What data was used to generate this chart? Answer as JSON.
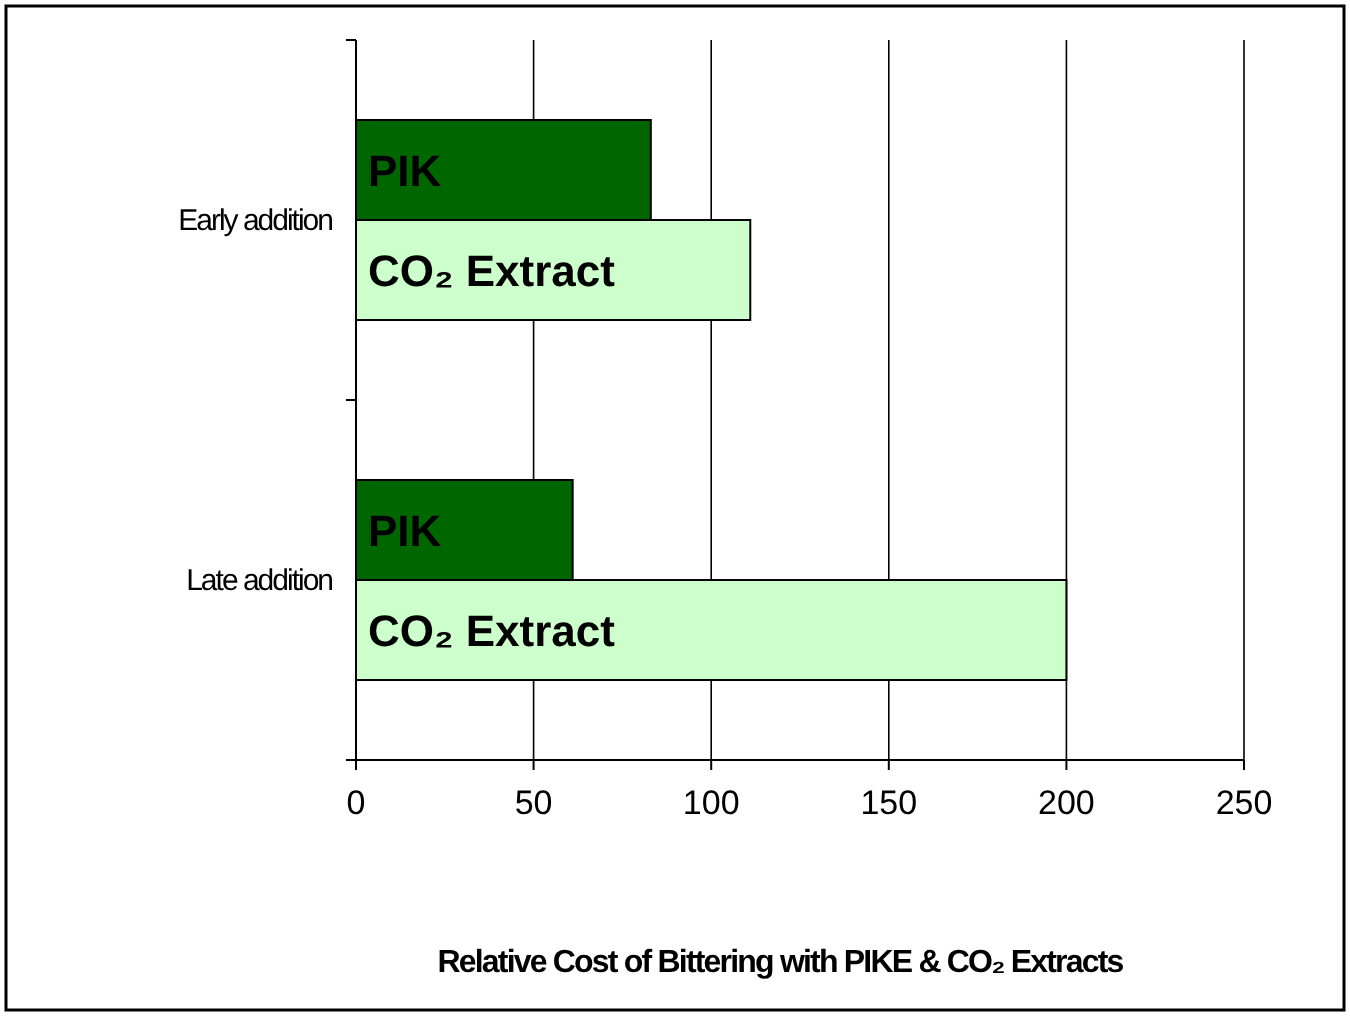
{
  "chart_data": {
    "type": "bar",
    "orientation": "horizontal",
    "xlabel": "Relative Cost of Bittering with PIKE & CO₂ Extracts",
    "categories": [
      "Early addition",
      "Late addition"
    ],
    "series": [
      {
        "name": "PIK",
        "color": "#006600",
        "values": [
          83,
          61
        ]
      },
      {
        "name": "CO₂ Extract",
        "color": "#ccffcc",
        "values": [
          111,
          200
        ]
      }
    ],
    "xlim": [
      0,
      250
    ],
    "xticks": [
      0,
      50,
      100,
      150,
      200,
      250
    ],
    "grid": "x",
    "legend": false
  }
}
